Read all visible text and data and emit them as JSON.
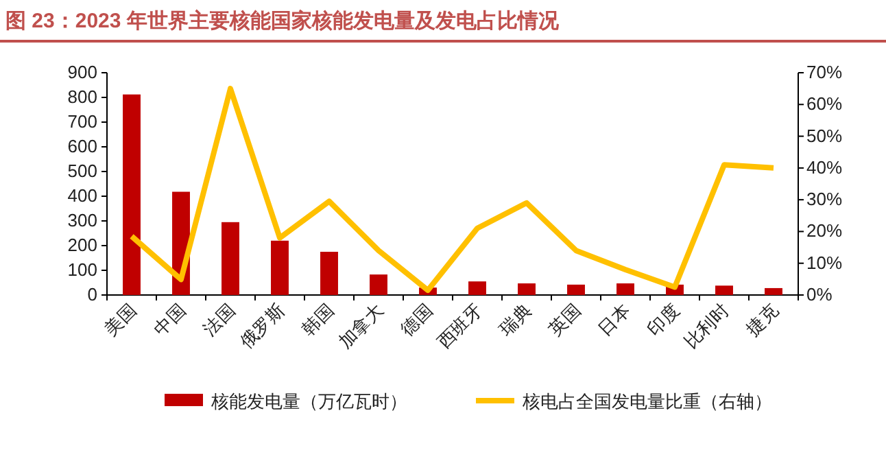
{
  "chart_data": {
    "type": "bar",
    "title": "图 23：2023 年世界主要核能国家核能发电量及发电占比情况",
    "categories": [
      "美国",
      "中国",
      "法国",
      "俄罗斯",
      "韩国",
      "加拿大",
      "德国",
      "西班牙",
      "瑞典",
      "英国",
      "日本",
      "印度",
      "比利时",
      "捷克"
    ],
    "series": [
      {
        "name": "核能发电量（万亿瓦时）",
        "color": "#c00000",
        "values": [
          812,
          418,
          295,
          220,
          175,
          83,
          30,
          55,
          47,
          42,
          47,
          42,
          38,
          28
        ]
      },
      {
        "name": "核电占全国发电量比重（右轴）",
        "type": "line",
        "axis": "y2",
        "color": "#ffc000",
        "values": [
          18.5,
          4.9,
          65,
          18,
          29.5,
          14,
          1.5,
          21,
          29,
          14,
          8,
          2.5,
          41,
          40
        ]
      }
    ],
    "ylim": [
      0,
      900
    ],
    "yticks": [
      0,
      100,
      200,
      300,
      400,
      500,
      600,
      700,
      800,
      900
    ],
    "y2lim": [
      0,
      70
    ],
    "y2ticks": [
      {
        "value": 0,
        "label": "0%"
      },
      {
        "value": 10,
        "label": "10%"
      },
      {
        "value": 20,
        "label": "20%"
      },
      {
        "value": 30,
        "label": "30%"
      },
      {
        "value": 40,
        "label": "40%"
      },
      {
        "value": 50,
        "label": "50%"
      },
      {
        "value": 60,
        "label": "60%"
      },
      {
        "value": 70,
        "label": "70%"
      }
    ],
    "grid": false,
    "legend": "bottom",
    "marker": "none"
  }
}
